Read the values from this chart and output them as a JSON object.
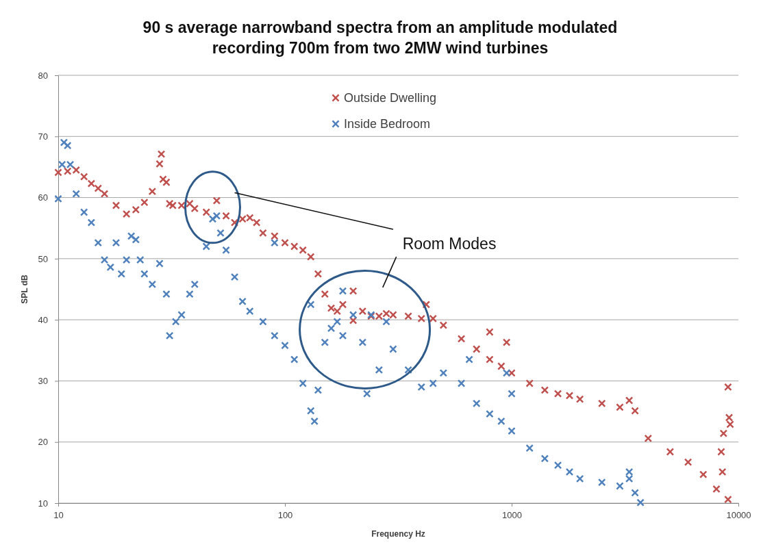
{
  "chart_data": {
    "type": "scatter",
    "title": "90 s average narrowband spectra from an amplitude modulated recording 700m from two 2MW wind turbines",
    "xlabel": "Frequency Hz",
    "ylabel": "SPL dB",
    "log": "x",
    "xlim": [
      10,
      10000
    ],
    "xticks": [
      10,
      100,
      1000,
      10000
    ],
    "ylim": [
      10,
      80
    ],
    "yticks": [
      10,
      20,
      30,
      40,
      50,
      60,
      70,
      80
    ],
    "grid": "y",
    "legend": "top",
    "marker": "cross",
    "annotations": [
      "Room Modes"
    ],
    "series": [
      {
        "name": "Outside Dwelling",
        "color": "#c0504d",
        "x": [
          10,
          11,
          12,
          13,
          14,
          15,
          16,
          18,
          20,
          22,
          24,
          26,
          28,
          28.5,
          29,
          30,
          31,
          32,
          35,
          38,
          40,
          45,
          50,
          55,
          60,
          65,
          70,
          75,
          80,
          90,
          100,
          110,
          120,
          130,
          140,
          150,
          160,
          170,
          180,
          200,
          220,
          240,
          260,
          280,
          300,
          350,
          400,
          450,
          500,
          600,
          700,
          800,
          900,
          1000,
          1200,
          1400,
          1600,
          1800,
          2000,
          2500,
          3000,
          3300,
          3500,
          4000,
          5000,
          6000,
          7000,
          8000,
          9000,
          8500,
          8400,
          8600,
          9000,
          9200,
          9100,
          420,
          200,
          800,
          950
        ],
        "values": [
          64.1,
          64.3,
          64.5,
          63.4,
          62.3,
          61.5,
          60.6,
          58.7,
          57.3,
          58,
          59.2,
          61,
          65.5,
          67.1,
          63,
          62.5,
          59,
          58.7,
          58.7,
          59,
          58.2,
          57.6,
          59.5,
          57,
          55.9,
          56.5,
          56.7,
          55.9,
          54.2,
          53.7,
          52.6,
          52,
          51.4,
          50.3,
          47.5,
          44.2,
          41.9,
          41.4,
          42.5,
          39.9,
          41.4,
          40.6,
          40.6,
          41,
          40.8,
          40.6,
          40.2,
          40.2,
          39.1,
          36.9,
          35.2,
          33.5,
          32.4,
          31.3,
          29.6,
          28.5,
          27.9,
          27.6,
          27,
          26.3,
          25.7,
          26.8,
          25.1,
          20.6,
          18.4,
          16.7,
          14.7,
          12.3,
          10.6,
          15.1,
          18.4,
          21.4,
          29,
          22.9,
          24,
          42.5,
          44.7,
          38,
          36.3
        ]
      },
      {
        "name": "Inside Bedroom",
        "color": "#4f81bd",
        "x": [
          10,
          10.4,
          10.6,
          11,
          11.3,
          12,
          13,
          14,
          15,
          16,
          17,
          18,
          19,
          20,
          21,
          22,
          23,
          24,
          26,
          28,
          30,
          31,
          33,
          35,
          38,
          40,
          45,
          48,
          50,
          52,
          55,
          60,
          65,
          70,
          80,
          90,
          100,
          110,
          120,
          130,
          135,
          140,
          150,
          160,
          170,
          180,
          200,
          220,
          230,
          240,
          260,
          280,
          300,
          350,
          400,
          450,
          500,
          600,
          700,
          800,
          900,
          1000,
          1200,
          1400,
          1600,
          1800,
          2000,
          2500,
          3000,
          3300,
          3500,
          3700,
          90,
          130,
          180,
          950,
          1000,
          650,
          3300
        ],
        "values": [
          59.8,
          65.4,
          69,
          68.5,
          65.4,
          60.6,
          57.6,
          55.9,
          52.6,
          49.8,
          48.6,
          52.6,
          47.5,
          49.8,
          53.7,
          53.1,
          49.8,
          47.5,
          45.8,
          49.2,
          44.2,
          37.4,
          39.7,
          40.8,
          44.2,
          45.8,
          52,
          56.5,
          57,
          54.2,
          51.4,
          47,
          43,
          41.4,
          39.7,
          37.4,
          35.8,
          33.5,
          29.6,
          25.1,
          23.4,
          28.5,
          36.3,
          38.6,
          39.7,
          37.4,
          40.8,
          36.3,
          27.9,
          40.8,
          31.8,
          39.7,
          35.2,
          31.8,
          29,
          29.6,
          31.3,
          29.6,
          26.3,
          24.6,
          23.4,
          21.8,
          19,
          17.3,
          16.2,
          15.1,
          14,
          13.4,
          12.8,
          14,
          11.7,
          10.1,
          52.6,
          42.5,
          44.7,
          31.3,
          27.9,
          33.5,
          15.1
        ]
      }
    ]
  }
}
